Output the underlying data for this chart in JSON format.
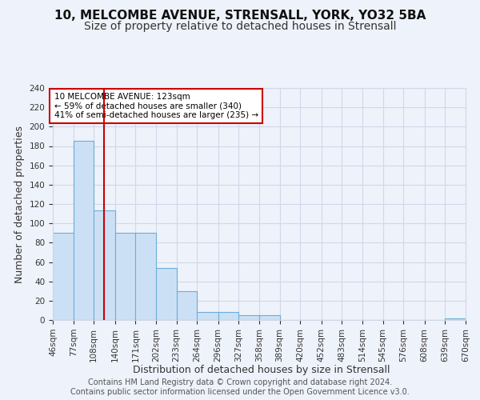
{
  "title1": "10, MELCOMBE AVENUE, STRENSALL, YORK, YO32 5BA",
  "title2": "Size of property relative to detached houses in Strensall",
  "xlabel": "Distribution of detached houses by size in Strensall",
  "ylabel": "Number of detached properties",
  "bar_edges": [
    46,
    77,
    108,
    140,
    171,
    202,
    233,
    264,
    296,
    327,
    358,
    389,
    420,
    452,
    483,
    514,
    545,
    576,
    608,
    639,
    670
  ],
  "bar_heights": [
    90,
    185,
    113,
    90,
    90,
    54,
    30,
    8,
    8,
    5,
    5,
    0,
    0,
    0,
    0,
    0,
    0,
    0,
    0,
    2,
    0
  ],
  "bar_color": "#cce0f5",
  "bar_edgecolor": "#6aaed6",
  "grid_color": "#d0d8e8",
  "background_color": "#eef2fa",
  "vline_x": 123,
  "vline_color": "#cc0000",
  "annotation_text": "10 MELCOMBE AVENUE: 123sqm\n← 59% of detached houses are smaller (340)\n41% of semi-detached houses are larger (235) →",
  "annotation_box_color": "white",
  "annotation_box_edgecolor": "#cc0000",
  "ylim": [
    0,
    240
  ],
  "yticks": [
    0,
    20,
    40,
    60,
    80,
    100,
    120,
    140,
    160,
    180,
    200,
    220,
    240
  ],
  "xtick_labels": [
    "46sqm",
    "77sqm",
    "108sqm",
    "140sqm",
    "171sqm",
    "202sqm",
    "233sqm",
    "264sqm",
    "296sqm",
    "327sqm",
    "358sqm",
    "389sqm",
    "420sqm",
    "452sqm",
    "483sqm",
    "514sqm",
    "545sqm",
    "576sqm",
    "608sqm",
    "639sqm",
    "670sqm"
  ],
  "footer": "Contains HM Land Registry data © Crown copyright and database right 2024.\nContains public sector information licensed under the Open Government Licence v3.0.",
  "title1_fontsize": 11,
  "title2_fontsize": 10,
  "xlabel_fontsize": 9,
  "ylabel_fontsize": 9,
  "tick_fontsize": 7.5,
  "footer_fontsize": 7
}
